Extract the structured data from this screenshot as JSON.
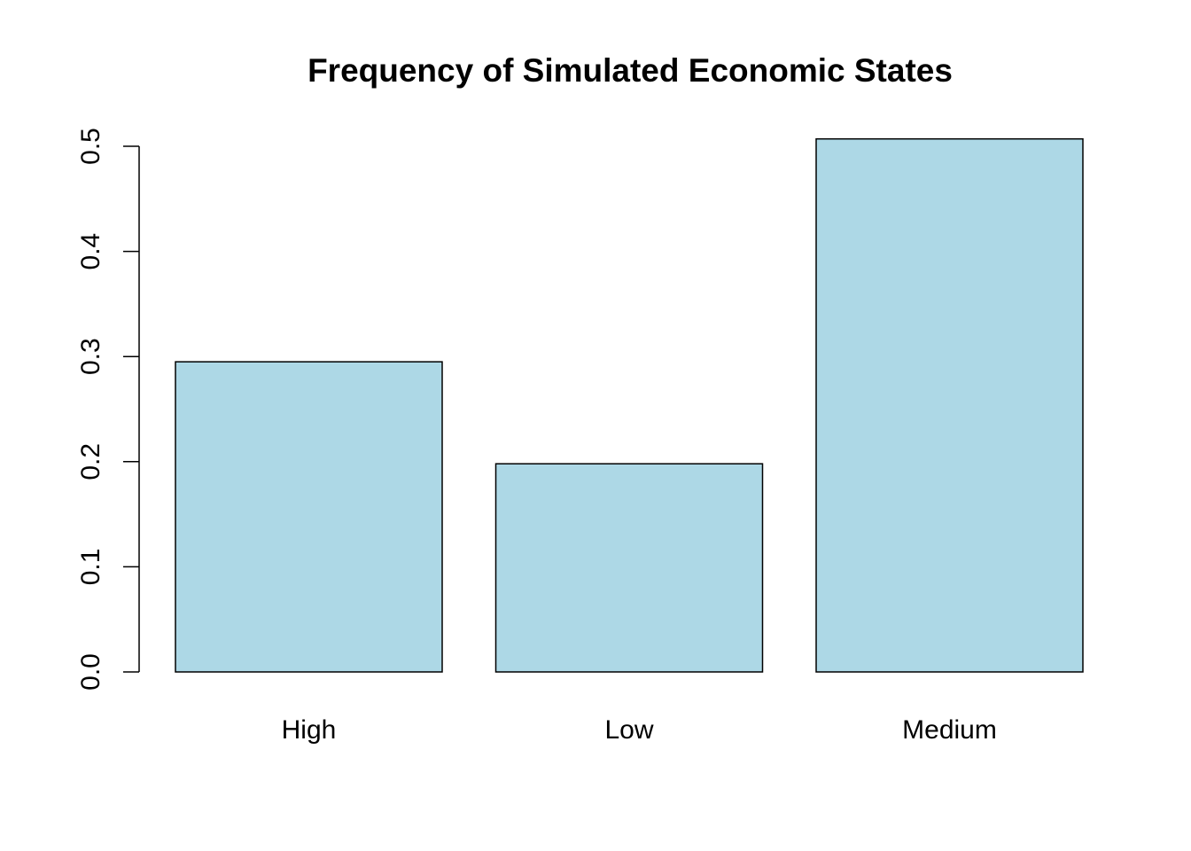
{
  "chart_data": {
    "type": "bar",
    "title": "Frequency of Simulated Economic States",
    "xlabel": "",
    "ylabel": "",
    "categories": [
      "High",
      "Low",
      "Medium"
    ],
    "values": [
      0.295,
      0.198,
      0.507
    ],
    "ylim": [
      0,
      0.5
    ],
    "yticks": [
      0.0,
      0.1,
      0.2,
      0.3,
      0.4,
      0.5
    ],
    "ytick_labels": [
      "0.0",
      "0.1",
      "0.2",
      "0.3",
      "0.4",
      "0.5"
    ],
    "bar_color": "#add8e6",
    "grid": false,
    "legend": "none"
  }
}
